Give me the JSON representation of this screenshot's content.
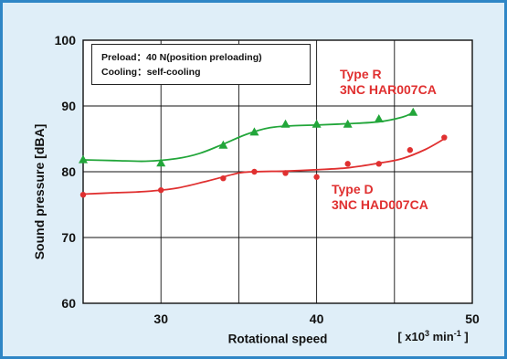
{
  "chart_data": {
    "type": "scatter",
    "title": "",
    "xlabel": "Rotational speed",
    "x_unit": {
      "prefix": "[ x10",
      "exponent": "3",
      "unit": " min",
      "unit_exponent": "-1",
      "suffix": " ]"
    },
    "ylabel": "Sound pressure [dBA]",
    "xlim": [
      25,
      50
    ],
    "ylim": [
      60,
      100
    ],
    "x_ticks": [
      30,
      40,
      50
    ],
    "y_ticks": [
      60,
      70,
      80,
      90,
      100
    ],
    "grid": true,
    "note": {
      "lines": [
        "Preload：40 N(position preloading)",
        "Cooling：self-cooling"
      ]
    },
    "series": [
      {
        "name_lines": [
          "Type R",
          "3NC HAR007CA"
        ],
        "marker": "triangle",
        "color": "#22a63a",
        "x": [
          25.0,
          30.0,
          34.0,
          36.0,
          38.0,
          40.0,
          42.0,
          44.0,
          46.2
        ],
        "y": [
          81.8,
          81.3,
          84.0,
          86.0,
          87.2,
          87.2,
          87.2,
          88.0,
          89.0
        ],
        "fit_x": [
          25.0,
          27.0,
          29.0,
          31.0,
          32.5,
          34.0,
          35.5,
          37.0,
          38.5,
          40.0,
          42.0,
          44.0,
          45.5,
          46.2
        ],
        "fit_y": [
          81.8,
          81.7,
          81.6,
          82.0,
          82.8,
          84.2,
          85.7,
          86.7,
          87.0,
          87.1,
          87.3,
          87.6,
          88.3,
          89.0
        ]
      },
      {
        "name_lines": [
          "Type D",
          "3NC HAD007CA"
        ],
        "marker": "circle",
        "color": "#e03030",
        "x": [
          25.0,
          30.0,
          34.0,
          36.0,
          38.0,
          40.0,
          42.0,
          44.0,
          46.0,
          48.2
        ],
        "y": [
          76.5,
          77.2,
          79.0,
          80.0,
          79.8,
          79.2,
          81.2,
          81.2,
          83.3,
          85.2
        ],
        "fit_x": [
          25.0,
          27.0,
          29.0,
          31.0,
          33.0,
          35.0,
          36.0,
          38.0,
          40.0,
          42.0,
          44.0,
          45.5,
          47.0,
          48.2
        ],
        "fit_y": [
          76.6,
          76.8,
          77.0,
          77.5,
          78.6,
          79.8,
          80.0,
          80.1,
          80.3,
          80.6,
          81.3,
          82.0,
          83.4,
          85.0
        ]
      }
    ]
  }
}
